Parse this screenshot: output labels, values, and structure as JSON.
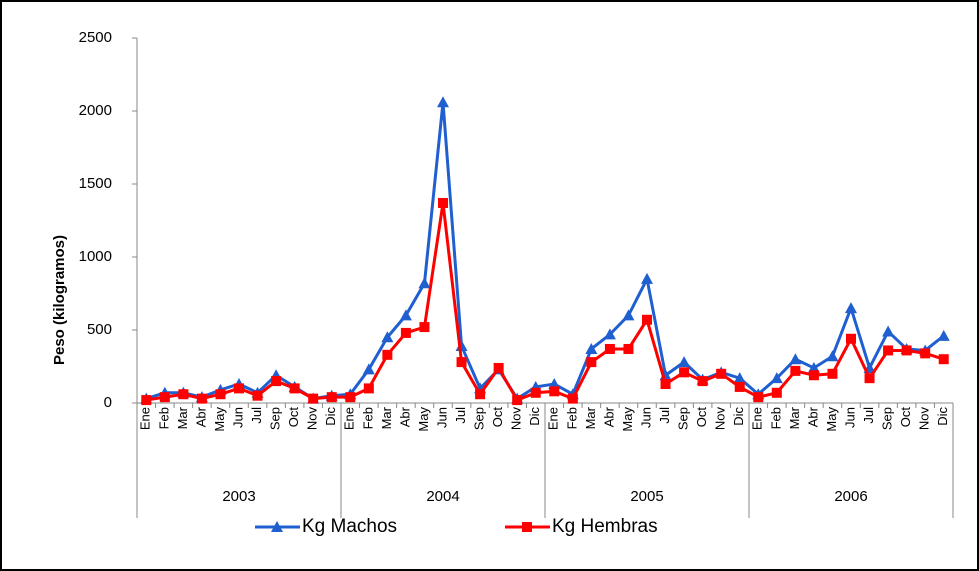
{
  "chart_data": {
    "type": "line",
    "y_label": "Peso  (kilogramos)",
    "categories": [
      "Ene",
      "Feb",
      "Mar",
      "Abr",
      "May",
      "Jun",
      "Jul",
      "Sep",
      "Oct",
      "Nov",
      "Dic",
      "Ene",
      "Feb",
      "Mar",
      "Abr",
      "May",
      "Jun",
      "Jul",
      "Sep",
      "Oct",
      "Nov",
      "Dic",
      "Ene",
      "Feb",
      "Mar",
      "Abr",
      "May",
      "Jun",
      "Jul",
      "Sep",
      "Oct",
      "Nov",
      "Dic",
      "Ene",
      "Feb",
      "Mar",
      "Abr",
      "May",
      "Jun",
      "Jul",
      "Sep",
      "Oct",
      "Nov",
      "Dic"
    ],
    "category_groups": [
      "2003",
      "2004",
      "2005",
      "2006"
    ],
    "series": [
      {
        "name": "Kg Machos",
        "color": "#1f5fd0",
        "marker": "triangle",
        "values": [
          30,
          70,
          70,
          40,
          90,
          130,
          70,
          190,
          110,
          30,
          50,
          60,
          230,
          450,
          600,
          820,
          2060,
          390,
          100,
          230,
          30,
          110,
          130,
          60,
          370,
          470,
          600,
          850,
          190,
          280,
          160,
          210,
          170,
          60,
          170,
          300,
          240,
          320,
          650,
          240,
          490,
          370,
          360,
          460
        ]
      },
      {
        "name": "Kg Hembras",
        "color": "#ff0000",
        "marker": "square",
        "values": [
          20,
          40,
          60,
          30,
          60,
          100,
          50,
          150,
          100,
          30,
          40,
          40,
          100,
          330,
          480,
          520,
          1370,
          280,
          60,
          240,
          20,
          70,
          80,
          30,
          280,
          370,
          370,
          570,
          130,
          210,
          150,
          200,
          110,
          40,
          70,
          220,
          190,
          200,
          440,
          170,
          360,
          360,
          340,
          300
        ]
      }
    ],
    "ylim": [
      0,
      2500
    ],
    "yticks": [
      0,
      500,
      1000,
      1500,
      2000,
      2500
    ]
  }
}
